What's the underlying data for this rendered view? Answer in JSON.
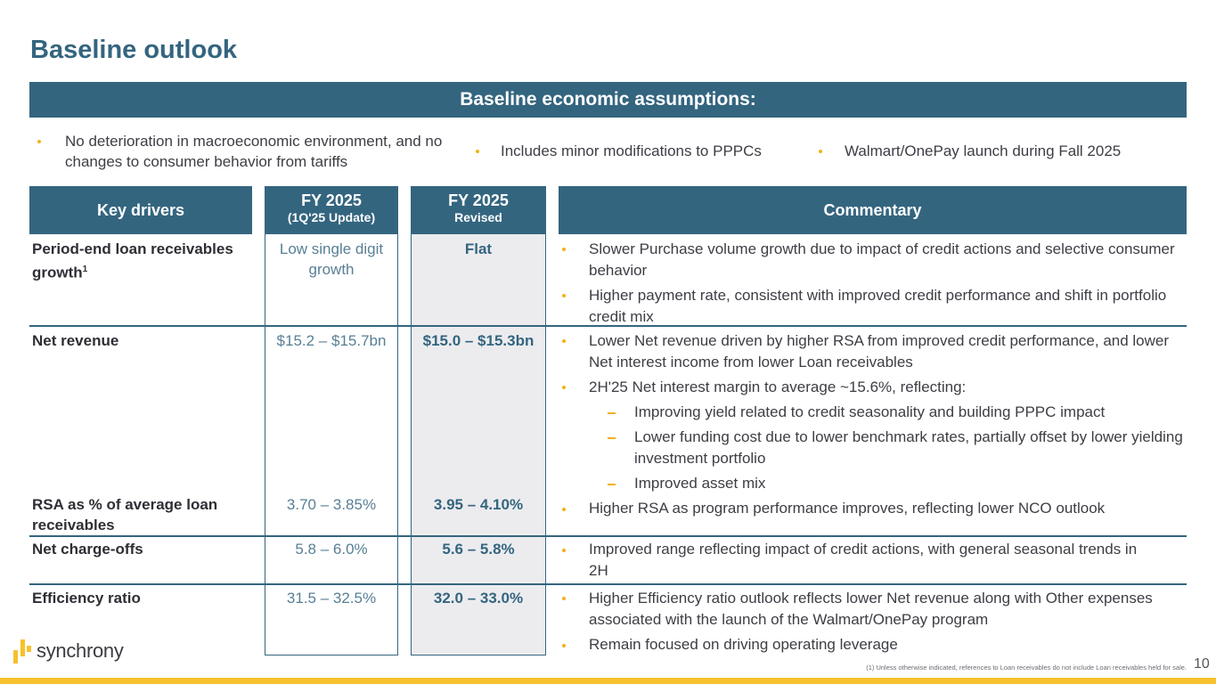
{
  "title": "Baseline outlook",
  "banner": "Baseline economic assumptions:",
  "assumptions": [
    "No deterioration in macroeconomic environment, and no changes to consumer behavior from tariffs",
    "Includes minor modifications to PPPCs",
    "Walmart/OnePay launch during Fall 2025"
  ],
  "table": {
    "headers": {
      "drivers": "Key drivers",
      "update_main": "FY 2025",
      "update_sub": "(1Q'25 Update)",
      "revised_main": "FY 2025",
      "revised_sub": "Revised",
      "commentary": "Commentary"
    },
    "rows": [
      {
        "driver": "Period-end loan receivables growth",
        "superscript": "1",
        "update": "Low single digit growth",
        "revised": "Flat",
        "commentary": [
          "Slower Purchase volume growth due to impact of credit actions and selective consumer behavior",
          "Higher payment rate, consistent with improved credit performance and shift in portfolio credit mix"
        ]
      },
      {
        "driver": "Net revenue",
        "update": "$15.2 – $15.7bn",
        "revised": "$15.0 – $15.3bn",
        "commentary": [
          "Lower Net revenue driven by higher RSA from improved credit performance, and lower Net interest income from lower Loan receivables",
          "2H'25 Net interest margin to average ~15.6%, reflecting:"
        ],
        "sub_points": [
          "Improving yield related to credit seasonality and building PPPC impact",
          "Lower funding cost due to lower benchmark rates, partially offset by lower yielding investment portfolio",
          "Improved asset mix"
        ]
      },
      {
        "driver": "RSA as % of average loan receivables",
        "update": "3.70 – 3.85%",
        "revised": "3.95 – 4.10%",
        "commentary": [
          "Higher RSA as program performance improves, reflecting lower NCO outlook"
        ]
      },
      {
        "driver": "Net charge-offs",
        "update": "5.8 – 6.0%",
        "revised": "5.6 – 5.8%",
        "commentary": [
          "Improved range reflecting impact of credit actions, with general seasonal trends in 2H"
        ]
      },
      {
        "driver": "Efficiency ratio",
        "update": "31.5 – 32.5%",
        "revised": "32.0 – 33.0%",
        "commentary": [
          "Higher Efficiency ratio outlook reflects lower Net revenue along with Other expenses associated with the launch of the Walmart/OnePay program",
          "Remain focused on driving operating leverage"
        ]
      }
    ]
  },
  "logo_text": "synchrony",
  "footnote": "(1) Unless otherwise indicated, references to Loan receivables do not include Loan receivables held for sale.",
  "page_number": "10",
  "colors": {
    "primary": "#34657f",
    "accent": "#f6c12c",
    "revised_bg": "#ececef"
  }
}
